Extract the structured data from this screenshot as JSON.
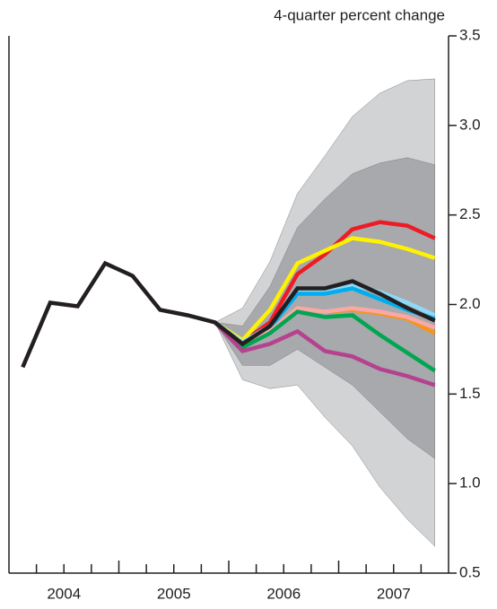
{
  "chart_data": {
    "type": "fan-line",
    "y_axis_title": "4-quarter percent change",
    "x": [
      2004.125,
      2004.375,
      2004.625,
      2004.875,
      2005.125,
      2005.375,
      2005.625,
      2005.875,
      2006.125,
      2006.375,
      2006.625,
      2006.875,
      2007.125,
      2007.375,
      2007.625,
      2007.875
    ],
    "xlim": [
      2004,
      2008
    ],
    "year_labels": [
      {
        "value": 2004.5,
        "label": "2004"
      },
      {
        "value": 2005.5,
        "label": "2005"
      },
      {
        "value": 2006.5,
        "label": "2006"
      },
      {
        "value": 2007.5,
        "label": "2007"
      }
    ],
    "xminorticks": [
      2004.25,
      2004.5,
      2004.75,
      2005,
      2005.25,
      2005.5,
      2005.75,
      2006,
      2006.25,
      2006.5,
      2006.75,
      2007,
      2007.25,
      2007.5,
      2007.75
    ],
    "ylim": [
      0.5,
      3.5
    ],
    "yticks": [
      0.5,
      {
        "value": 1,
        "label": "1.0"
      },
      1.5,
      {
        "value": 2,
        "label": "2.0"
      },
      2.5,
      {
        "value": 3,
        "label": "3.0"
      },
      3.5
    ],
    "bands": [
      {
        "color": "#d1d3d4",
        "upper": [
          null,
          null,
          null,
          null,
          null,
          null,
          null,
          1.9,
          1.98,
          2.24,
          2.62,
          2.83,
          3.05,
          3.18,
          3.25,
          3.26
        ],
        "lower": [
          null,
          null,
          null,
          null,
          null,
          null,
          null,
          1.9,
          1.58,
          1.53,
          1.55,
          1.37,
          1.21,
          0.98,
          0.8,
          0.65
        ]
      },
      {
        "color": "#a7a9ac",
        "upper": [
          null,
          null,
          null,
          null,
          null,
          null,
          null,
          1.9,
          1.88,
          2.1,
          2.43,
          2.59,
          2.73,
          2.79,
          2.82,
          2.78
        ],
        "lower": [
          null,
          null,
          null,
          null,
          null,
          null,
          null,
          1.9,
          1.66,
          1.66,
          1.75,
          1.65,
          1.55,
          1.4,
          1.25,
          1.14
        ]
      }
    ],
    "series": [
      {
        "color": "#ed1c24",
        "values": [
          null,
          null,
          null,
          null,
          null,
          null,
          null,
          1.9,
          1.79,
          1.9,
          2.17,
          2.28,
          2.42,
          2.46,
          2.44,
          2.37
        ]
      },
      {
        "color": "#fff200",
        "values": [
          null,
          null,
          null,
          null,
          null,
          null,
          null,
          1.9,
          1.8,
          1.97,
          2.23,
          2.3,
          2.37,
          2.35,
          2.31,
          2.26
        ]
      },
      {
        "color": "#8ed8f8",
        "values": [
          null,
          null,
          null,
          null,
          null,
          null,
          null,
          1.9,
          1.79,
          1.88,
          2.08,
          2.08,
          2.11,
          2.07,
          2.01,
          1.94
        ]
      },
      {
        "color": "#00aeef",
        "values": [
          null,
          null,
          null,
          null,
          null,
          null,
          null,
          1.9,
          1.78,
          1.87,
          2.06,
          2.06,
          2.09,
          2.03,
          1.97,
          1.92
        ]
      },
      {
        "color": "#f7941d",
        "values": [
          null,
          null,
          null,
          null,
          null,
          null,
          null,
          1.9,
          1.78,
          1.85,
          1.98,
          1.96,
          1.97,
          1.95,
          1.92,
          1.84
        ]
      },
      {
        "color": "#f9a8a8",
        "values": [
          null,
          null,
          null,
          null,
          null,
          null,
          null,
          1.9,
          1.78,
          1.85,
          1.98,
          1.96,
          1.98,
          1.96,
          1.93,
          1.87
        ]
      },
      {
        "color": "#00a651",
        "values": [
          null,
          null,
          null,
          null,
          null,
          null,
          null,
          1.9,
          1.76,
          1.84,
          1.96,
          1.93,
          1.94,
          1.83,
          1.73,
          1.63
        ]
      },
      {
        "color": "#b5418f",
        "values": [
          null,
          null,
          null,
          null,
          null,
          null,
          null,
          1.9,
          1.74,
          1.78,
          1.85,
          1.74,
          1.71,
          1.64,
          1.6,
          1.55
        ]
      },
      {
        "color": "#231f20",
        "values": [
          1.65,
          2.01,
          1.99,
          2.23,
          2.16,
          1.97,
          1.94,
          1.9,
          1.78,
          1.88,
          2.09,
          2.09,
          2.13,
          2.06,
          1.98,
          1.91
        ]
      }
    ]
  }
}
